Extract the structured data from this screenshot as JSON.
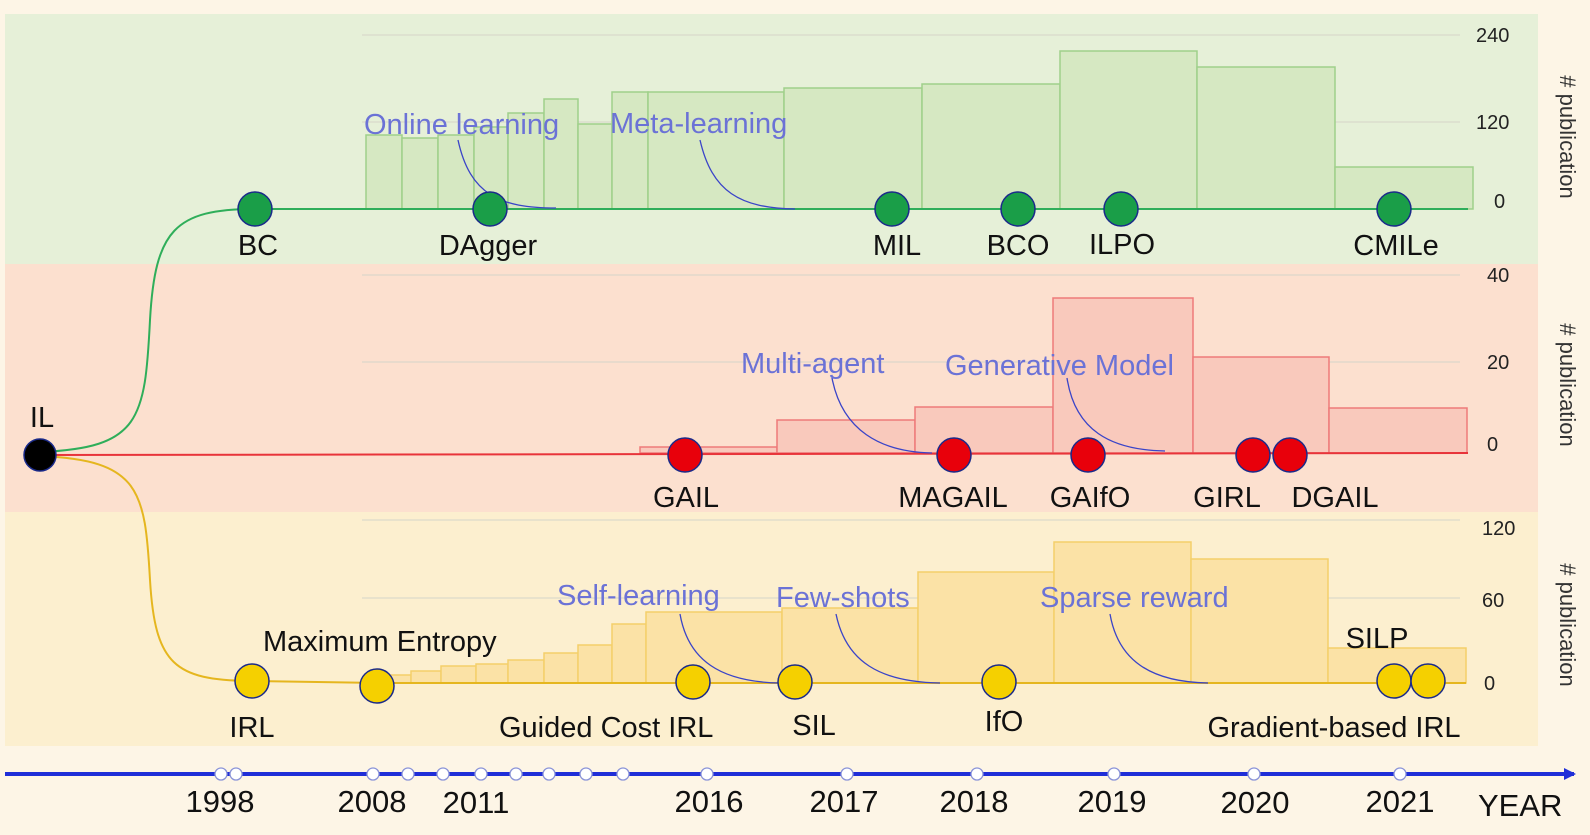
{
  "colors": {
    "background": "#fdf5e6",
    "bc_panel": "#e6f0d8",
    "gail_panel": "#fce0cf",
    "irl_panel": "#fcefcf",
    "bc_bar_fill": "#d6e8c2",
    "bc_bar_stroke": "#9fd08a",
    "gail_bar_fill": "#f9c9bc",
    "gail_bar_stroke": "#ee7a7a",
    "irl_bar_fill": "#fbe2a6",
    "irl_bar_stroke": "#f4cf6a",
    "bc_node": "#1a9e48",
    "gail_node": "#e8000b",
    "irl_node": "#f5d000",
    "root_node": "#000000",
    "timeline": "#1f2ed8",
    "annotation": "#6b72d6",
    "node_label": "#111111",
    "axis_text": "#222222"
  },
  "root": {
    "label": "IL"
  },
  "branches": {
    "bc": {
      "nodes": [
        "BC",
        "DAgger",
        "MIL",
        "BCO",
        "ILPO",
        "CMILe"
      ],
      "annotations": [
        "Online learning",
        "Meta-learning"
      ],
      "axis_title": "# publication",
      "axis_ticks": [
        "240",
        "120",
        "0"
      ],
      "publication_counts": [
        100,
        95,
        100,
        130,
        150,
        120,
        160,
        160,
        165,
        175,
        220,
        200,
        60
      ]
    },
    "gail": {
      "nodes": [
        "GAIL",
        "MAGAIL",
        "GAIfO",
        "GIRL",
        "DGAIL"
      ],
      "annotations": [
        "Multi-agent",
        "Generative Model"
      ],
      "axis_title": "# publication",
      "axis_ticks": [
        "40",
        "20",
        "0"
      ],
      "publication_counts": [
        1,
        7,
        10,
        36,
        21,
        10
      ]
    },
    "irl": {
      "nodes": [
        "IRL",
        "Maximum Entropy",
        "Guided Cost IRL",
        "SIL",
        "IfO",
        "SILP",
        "Gradient-based IRL"
      ],
      "annotations": [
        "Self-learning",
        "Few-shots",
        "Sparse reward"
      ],
      "axis_title": "# publication",
      "axis_ticks": [
        "120",
        "60",
        "0"
      ],
      "publication_counts": [
        5,
        10,
        12,
        14,
        20,
        25,
        35,
        50,
        50,
        60,
        80,
        105,
        90,
        22
      ]
    }
  },
  "timeline": {
    "years": [
      "1998",
      "2008",
      "2011",
      "2016",
      "2017",
      "2018",
      "2019",
      "2020",
      "2021"
    ],
    "axis_label": "YEAR"
  }
}
